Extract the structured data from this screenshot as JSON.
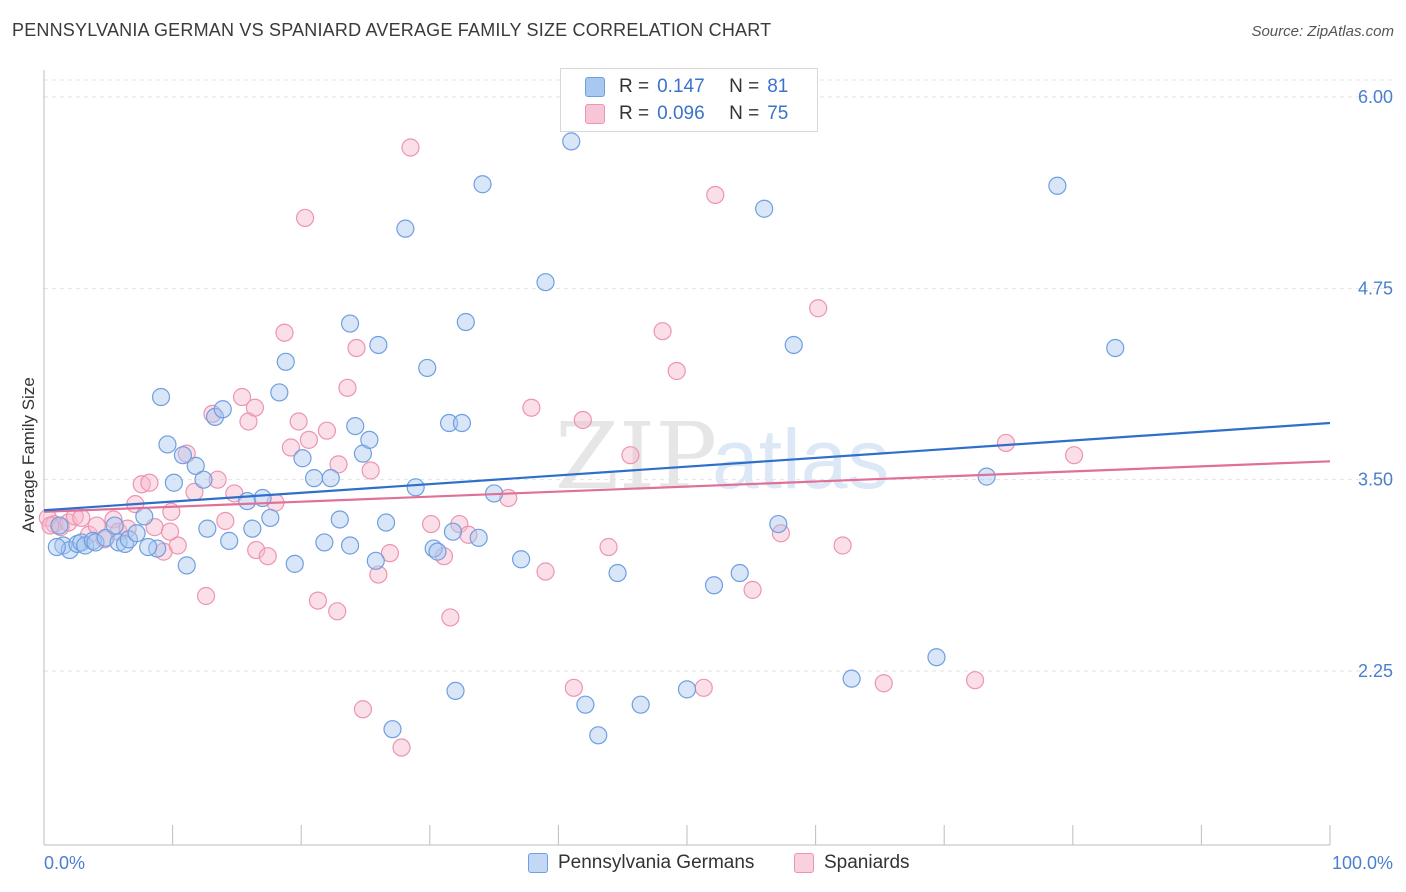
{
  "title": "PENNSYLVANIA GERMAN VS SPANIARD AVERAGE FAMILY SIZE CORRELATION CHART",
  "source": "Source: ZipAtlas.com",
  "watermark": {
    "zip": "ZIP",
    "atlas": "atlas"
  },
  "legend": {
    "rows": [
      {
        "r_label": "R =",
        "r_value": "0.147",
        "n_label": "N =",
        "n_value": "81"
      },
      {
        "r_label": "R =",
        "r_value": "0.096",
        "n_label": "N =",
        "n_value": "75"
      }
    ]
  },
  "colors": {
    "blue_fill": "#a9c8f0",
    "blue_stroke": "#6f9fe0",
    "blue_line": "#2f6fcc",
    "pink_fill": "#f7b8cc",
    "pink_stroke": "#ee94b0",
    "pink_line": "#e07098",
    "tick_text": "#4a7fd0",
    "grid": "#e3e3e3"
  },
  "chart_data": {
    "type": "scatter",
    "title": "PENNSYLVANIA GERMAN VS SPANIARD AVERAGE FAMILY SIZE CORRELATION CHART",
    "xlabel": "",
    "ylabel": "Average Family Size",
    "x_tick_labels": [
      "0.0%",
      "100.0%"
    ],
    "y_ticks": [
      2.25,
      3.5,
      4.75,
      6.0
    ],
    "y_tick_labels": [
      "2.25",
      "3.50",
      "4.75",
      "6.00"
    ],
    "xlim": [
      0,
      100
    ],
    "ylim": [
      1.15,
      6.1
    ],
    "grid": "horizontal dashed",
    "legend_position": "top-center",
    "series": [
      {
        "name": "Pennsylvania Germans",
        "color": "#a9c8f0",
        "trend": {
          "x": [
            0,
            100
          ],
          "y": [
            3.3,
            3.87
          ]
        },
        "points": [
          [
            1.2,
            3.2
          ],
          [
            1.5,
            3.07
          ],
          [
            2.0,
            3.04
          ],
          [
            2.6,
            3.08
          ],
          [
            2.9,
            3.09
          ],
          [
            3.2,
            3.07
          ],
          [
            3.8,
            3.1
          ],
          [
            4.0,
            3.09
          ],
          [
            4.8,
            3.12
          ],
          [
            5.5,
            3.2
          ],
          [
            5.8,
            3.09
          ],
          [
            6.3,
            3.08
          ],
          [
            6.6,
            3.11
          ],
          [
            7.2,
            3.15
          ],
          [
            7.8,
            3.26
          ],
          [
            8.8,
            3.05
          ],
          [
            9.1,
            4.04
          ],
          [
            9.6,
            3.73
          ],
          [
            10.1,
            3.48
          ],
          [
            10.8,
            3.66
          ],
          [
            11.1,
            2.94
          ],
          [
            11.8,
            3.59
          ],
          [
            12.4,
            3.5
          ],
          [
            12.7,
            3.18
          ],
          [
            13.3,
            3.91
          ],
          [
            13.9,
            3.96
          ],
          [
            14.4,
            3.1
          ],
          [
            15.8,
            3.36
          ],
          [
            16.2,
            3.18
          ],
          [
            17.0,
            3.38
          ],
          [
            17.6,
            3.25
          ],
          [
            18.3,
            4.07
          ],
          [
            18.8,
            4.27
          ],
          [
            19.5,
            2.95
          ],
          [
            20.1,
            3.64
          ],
          [
            21.0,
            3.51
          ],
          [
            21.8,
            3.09
          ],
          [
            22.3,
            3.51
          ],
          [
            23.0,
            3.24
          ],
          [
            23.8,
            4.52
          ],
          [
            24.2,
            3.85
          ],
          [
            24.8,
            3.67
          ],
          [
            25.3,
            3.76
          ],
          [
            25.8,
            2.97
          ],
          [
            26.0,
            4.38
          ],
          [
            27.1,
            1.87
          ],
          [
            28.1,
            5.14
          ],
          [
            28.9,
            3.45
          ],
          [
            29.8,
            4.23
          ],
          [
            30.3,
            3.05
          ],
          [
            30.6,
            3.03
          ],
          [
            31.5,
            3.87
          ],
          [
            31.8,
            3.16
          ],
          [
            32.5,
            3.87
          ],
          [
            32.8,
            4.53
          ],
          [
            33.8,
            3.12
          ],
          [
            34.1,
            5.43
          ],
          [
            35.0,
            3.41
          ],
          [
            37.1,
            2.98
          ],
          [
            39.0,
            4.79
          ],
          [
            41.0,
            5.71
          ],
          [
            42.1,
            2.03
          ],
          [
            43.1,
            1.83
          ],
          [
            44.6,
            2.89
          ],
          [
            46.4,
            2.03
          ],
          [
            50.0,
            2.13
          ],
          [
            52.1,
            2.81
          ],
          [
            54.1,
            2.89
          ],
          [
            56.0,
            5.27
          ],
          [
            57.1,
            3.21
          ],
          [
            58.3,
            4.38
          ],
          [
            62.8,
            2.2
          ],
          [
            69.4,
            2.34
          ],
          [
            73.3,
            3.52
          ],
          [
            78.8,
            5.42
          ],
          [
            83.3,
            4.36
          ],
          [
            1.0,
            3.06
          ],
          [
            23.8,
            3.07
          ],
          [
            32.0,
            2.12
          ],
          [
            26.6,
            3.22
          ],
          [
            8.1,
            3.06
          ]
        ]
      },
      {
        "name": "Spaniards",
        "color": "#f7b8cc",
        "trend": {
          "x": [
            0,
            100
          ],
          "y": [
            3.29,
            3.62
          ]
        },
        "points": [
          [
            0.3,
            3.25
          ],
          [
            0.8,
            3.21
          ],
          [
            1.3,
            3.19
          ],
          [
            1.9,
            3.22
          ],
          [
            2.4,
            3.26
          ],
          [
            2.9,
            3.25
          ],
          [
            3.5,
            3.14
          ],
          [
            4.1,
            3.2
          ],
          [
            4.7,
            3.11
          ],
          [
            5.4,
            3.24
          ],
          [
            5.8,
            3.16
          ],
          [
            6.5,
            3.18
          ],
          [
            7.1,
            3.34
          ],
          [
            7.6,
            3.47
          ],
          [
            8.2,
            3.48
          ],
          [
            8.6,
            3.19
          ],
          [
            9.3,
            3.03
          ],
          [
            9.9,
            3.29
          ],
          [
            10.4,
            3.07
          ],
          [
            11.1,
            3.67
          ],
          [
            11.7,
            3.42
          ],
          [
            12.6,
            2.74
          ],
          [
            13.1,
            3.93
          ],
          [
            13.5,
            3.5
          ],
          [
            14.1,
            3.23
          ],
          [
            14.8,
            3.41
          ],
          [
            15.4,
            4.04
          ],
          [
            15.9,
            3.88
          ],
          [
            16.5,
            3.04
          ],
          [
            17.4,
            3.0
          ],
          [
            18.0,
            3.35
          ],
          [
            18.7,
            4.46
          ],
          [
            19.2,
            3.71
          ],
          [
            19.8,
            3.88
          ],
          [
            20.3,
            5.21
          ],
          [
            21.3,
            2.71
          ],
          [
            22.0,
            3.82
          ],
          [
            22.8,
            2.64
          ],
          [
            23.6,
            4.1
          ],
          [
            24.3,
            4.36
          ],
          [
            24.8,
            2.0
          ],
          [
            25.4,
            3.56
          ],
          [
            26.0,
            2.88
          ],
          [
            26.9,
            3.02
          ],
          [
            27.8,
            1.75
          ],
          [
            28.5,
            5.67
          ],
          [
            30.1,
            3.21
          ],
          [
            31.1,
            3.0
          ],
          [
            31.6,
            2.6
          ],
          [
            32.3,
            3.21
          ],
          [
            33.0,
            3.14
          ],
          [
            36.1,
            3.38
          ],
          [
            39.0,
            2.9
          ],
          [
            41.2,
            2.14
          ],
          [
            41.9,
            3.89
          ],
          [
            43.9,
            3.06
          ],
          [
            45.6,
            3.66
          ],
          [
            48.1,
            4.47
          ],
          [
            49.2,
            4.21
          ],
          [
            51.3,
            2.14
          ],
          [
            52.2,
            5.36
          ],
          [
            55.1,
            2.78
          ],
          [
            57.3,
            3.15
          ],
          [
            60.2,
            4.62
          ],
          [
            62.1,
            3.07
          ],
          [
            65.3,
            2.17
          ],
          [
            72.4,
            2.19
          ],
          [
            74.8,
            3.74
          ],
          [
            80.1,
            3.66
          ],
          [
            0.5,
            3.2
          ],
          [
            9.8,
            3.16
          ],
          [
            16.4,
            3.97
          ],
          [
            20.6,
            3.76
          ],
          [
            22.9,
            3.6
          ],
          [
            37.9,
            3.97
          ]
        ]
      }
    ]
  },
  "bottom_legend": [
    "Pennsylvania Germans",
    "Spaniards"
  ]
}
